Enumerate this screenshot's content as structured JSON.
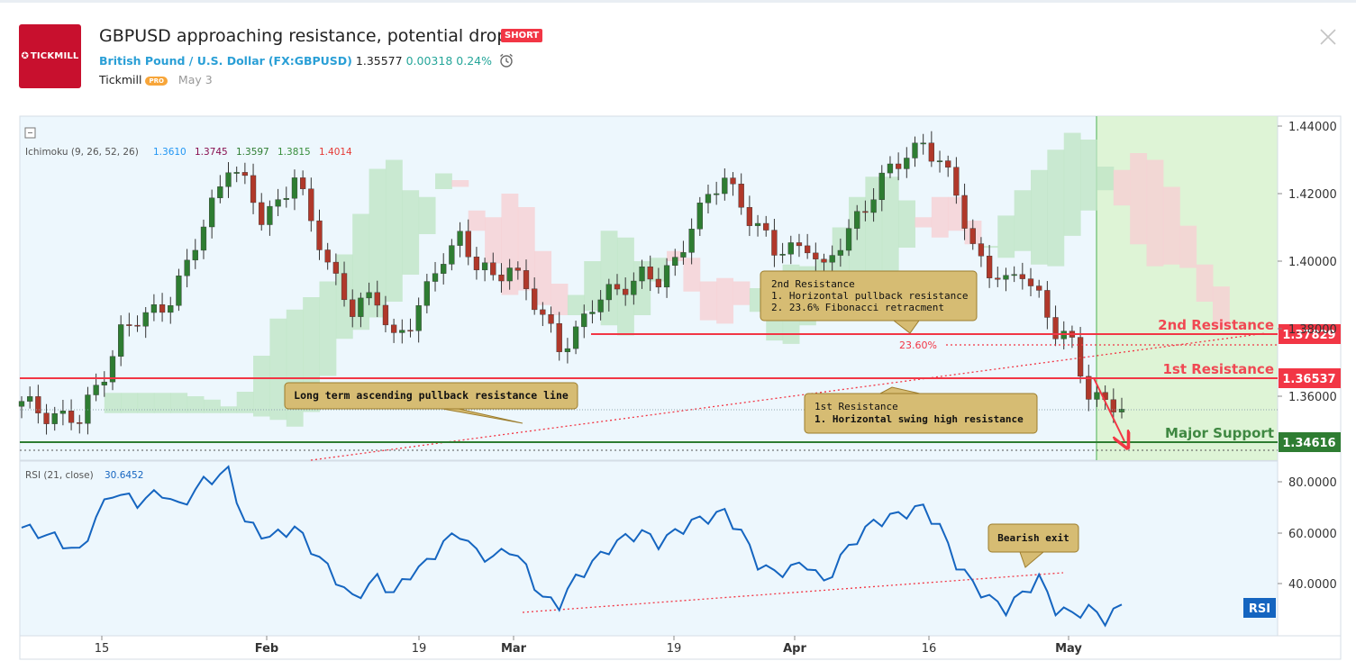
{
  "header": {
    "logo_text": "TICKMILL",
    "title": "GBPUSD approaching resistance, potential drop!",
    "badge": "SHORT",
    "symbol_name": "British Pound / U.S. Dollar",
    "symbol_code": "(FX:GBPUSD)",
    "price": "1.35577",
    "change": "0.00318",
    "change_pct": "0.24%",
    "author": "Tickmill",
    "author_badge": "PRO",
    "date": "May 3",
    "icons": {
      "alarm": "alarm-clock-icon",
      "close": "close-icon",
      "collapse": "collapse-icon"
    }
  },
  "chart_data": [
    {
      "type": "candlestick",
      "indicator_legend": {
        "name": "Ichimoku (9, 26, 52, 26)",
        "values": [
          "1.3610",
          "1.3745",
          "1.3597",
          "1.3815",
          "1.4014"
        ],
        "colors": [
          "#2196f3",
          "#880e4f",
          "#2e7d32",
          "#388e3c",
          "#e53935"
        ]
      },
      "x_ticks": [
        "15",
        "Feb",
        "19",
        "Mar",
        "19",
        "Apr",
        "16",
        "May"
      ],
      "y_ticks": [
        "1.44000",
        "1.42000",
        "1.40000",
        "1.38000",
        "1.36000"
      ],
      "ylim": [
        1.3365,
        1.4435
      ],
      "price_path": [
        [
          0,
          1.357
        ],
        [
          4,
          1.355
        ],
        [
          7,
          1.352
        ],
        [
          10,
          1.368
        ],
        [
          12,
          1.379
        ],
        [
          15,
          1.383
        ],
        [
          18,
          1.39
        ],
        [
          20,
          1.398
        ],
        [
          22,
          1.41
        ],
        [
          25,
          1.43
        ],
        [
          27,
          1.422
        ],
        [
          29,
          1.412
        ],
        [
          31,
          1.418
        ],
        [
          33,
          1.426
        ],
        [
          35,
          1.41
        ],
        [
          37,
          1.4
        ],
        [
          40,
          1.386
        ],
        [
          43,
          1.388
        ],
        [
          45,
          1.378
        ],
        [
          47,
          1.382
        ],
        [
          49,
          1.39
        ],
        [
          51,
          1.402
        ],
        [
          53,
          1.408
        ],
        [
          55,
          1.398
        ],
        [
          57,
          1.394
        ],
        [
          59,
          1.4
        ],
        [
          61,
          1.392
        ],
        [
          63,
          1.382
        ],
        [
          65,
          1.375
        ],
        [
          67,
          1.38
        ],
        [
          69,
          1.386
        ],
        [
          71,
          1.39
        ],
        [
          73,
          1.394
        ],
        [
          75,
          1.396
        ],
        [
          77,
          1.393
        ],
        [
          79,
          1.4
        ],
        [
          81,
          1.412
        ],
        [
          83,
          1.418
        ],
        [
          85,
          1.424
        ],
        [
          87,
          1.418
        ],
        [
          89,
          1.41
        ],
        [
          91,
          1.402
        ],
        [
          93,
          1.404
        ],
        [
          95,
          1.406
        ],
        [
          97,
          1.396
        ],
        [
          99,
          1.405
        ],
        [
          101,
          1.414
        ],
        [
          103,
          1.42
        ],
        [
          105,
          1.426
        ],
        [
          107,
          1.432
        ],
        [
          109,
          1.436
        ],
        [
          111,
          1.428
        ],
        [
          113,
          1.42
        ],
        [
          115,
          1.405
        ],
        [
          117,
          1.397
        ],
        [
          119,
          1.392
        ],
        [
          121,
          1.398
        ],
        [
          123,
          1.39
        ],
        [
          125,
          1.378
        ],
        [
          127,
          1.375
        ],
        [
          129,
          1.362
        ],
        [
          131,
          1.358
        ],
        [
          133,
          1.355
        ]
      ],
      "lines": [
        {
          "label": "1.37829",
          "value": 1.37829,
          "color": "#f23645",
          "text": "2nd Resistance"
        },
        {
          "label": "1.36537",
          "value": 1.36537,
          "color": "#f23645",
          "text": "1st Resistance"
        },
        {
          "label": "1.34616",
          "value": 1.34616,
          "color": "#2e7d32",
          "text": "Major Support"
        }
      ],
      "fib_label": "23.60%",
      "annotations": [
        {
          "lines": [
            "2nd Resistance",
            "1. Horizontal pullback resistance",
            "2. 23.6% Fibonacci retracment"
          ]
        },
        {
          "lines": [
            "Long term ascending pullback resistance line"
          ]
        },
        {
          "lines": [
            "1st Resistance",
            "1. Horizontal swing high resistance"
          ]
        }
      ]
    },
    {
      "type": "line",
      "legend": {
        "name": "RSI (21, close)",
        "value": "30.6452"
      },
      "badge": "RSI",
      "y_ticks": [
        "80.0000",
        "60.0000",
        "40.0000"
      ],
      "ylim": [
        22,
        88
      ],
      "series": [
        {
          "color": "#1565c0",
          "values": [
            [
              0,
              62
            ],
            [
              4,
              58
            ],
            [
              7,
              52
            ],
            [
              9,
              66
            ],
            [
              11,
              76
            ],
            [
              14,
              72
            ],
            [
              17,
              76
            ],
            [
              19,
              70
            ],
            [
              22,
              80
            ],
            [
              25,
              84
            ],
            [
              27,
              64
            ],
            [
              30,
              58
            ],
            [
              33,
              62
            ],
            [
              35,
              54
            ],
            [
              37,
              46
            ],
            [
              40,
              34
            ],
            [
              43,
              42
            ],
            [
              45,
              36
            ],
            [
              47,
              44
            ],
            [
              49,
              48
            ],
            [
              51,
              56
            ],
            [
              53,
              60
            ],
            [
              55,
              52
            ],
            [
              57,
              50
            ],
            [
              59,
              54
            ],
            [
              61,
              46
            ],
            [
              63,
              34
            ],
            [
              65,
              32
            ],
            [
              67,
              42
            ],
            [
              69,
              48
            ],
            [
              71,
              54
            ],
            [
              73,
              58
            ],
            [
              75,
              60
            ],
            [
              77,
              56
            ],
            [
              79,
              60
            ],
            [
              81,
              64
            ],
            [
              83,
              66
            ],
            [
              85,
              68
            ],
            [
              87,
              60
            ],
            [
              89,
              48
            ],
            [
              91,
              44
            ],
            [
              93,
              46
            ],
            [
              95,
              48
            ],
            [
              97,
              40
            ],
            [
              99,
              50
            ],
            [
              101,
              58
            ],
            [
              103,
              64
            ],
            [
              105,
              66
            ],
            [
              107,
              68
            ],
            [
              109,
              70
            ],
            [
              111,
              62
            ],
            [
              113,
              48
            ],
            [
              115,
              40
            ],
            [
              117,
              34
            ],
            [
              119,
              30
            ],
            [
              121,
              36
            ],
            [
              123,
              42
            ],
            [
              125,
              30
            ],
            [
              127,
              28
            ],
            [
              129,
              30
            ],
            [
              131,
              26
            ],
            [
              133,
              31
            ]
          ]
        }
      ],
      "annotations": [
        {
          "lines": [
            "Bearish exit"
          ]
        }
      ]
    }
  ]
}
